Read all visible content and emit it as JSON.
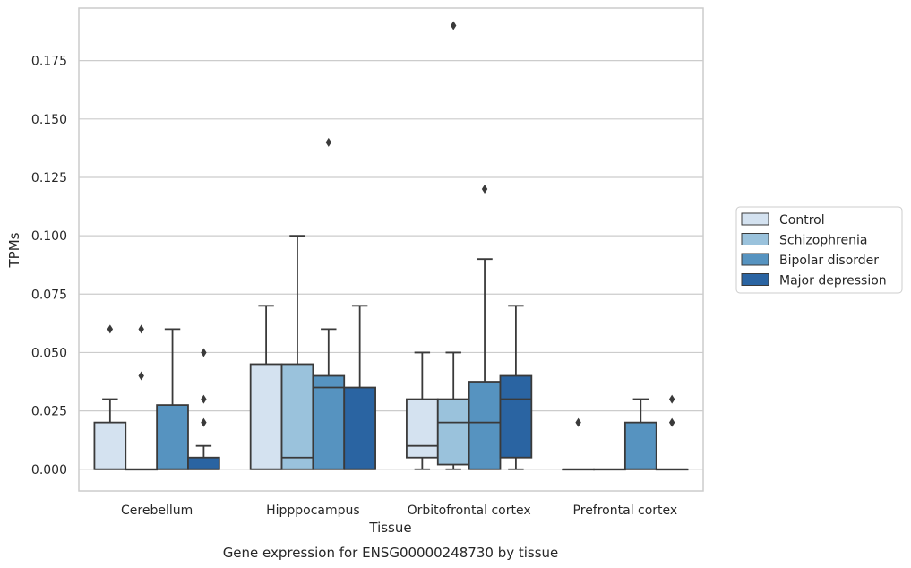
{
  "chart_data": {
    "type": "box",
    "title": "",
    "caption": "Gene expression for ENSG00000248730 by tissue",
    "xlabel": "Tissue",
    "ylabel": "TPMs",
    "ylim": [
      -0.0093,
      0.1975
    ],
    "yticks": [
      "0.000",
      "0.025",
      "0.050",
      "0.075",
      "0.100",
      "0.125",
      "0.150",
      "0.175"
    ],
    "grid": "horizontal",
    "legend_position": "right",
    "categories": [
      "Cerebellum",
      "Hipppocampus",
      "Orbitofrontal cortex",
      "Prefrontal cortex"
    ],
    "series": [
      {
        "name": "Control",
        "color": "#d4e2f0",
        "boxes": [
          {
            "low": 0,
            "q1": 0,
            "median": 0,
            "q3": 0.02,
            "high": 0.03,
            "outliers": [
              0.06
            ]
          },
          {
            "low": 0,
            "q1": 0,
            "median": 0,
            "q3": 0.045,
            "high": 0.07,
            "outliers": []
          },
          {
            "low": 0,
            "q1": 0.005,
            "median": 0.01,
            "q3": 0.03,
            "high": 0.05,
            "outliers": []
          },
          {
            "low": 0,
            "q1": 0,
            "median": 0,
            "q3": 0,
            "high": 0,
            "outliers": [
              0.02
            ]
          }
        ]
      },
      {
        "name": "Schizophrenia",
        "color": "#9ac2dc",
        "boxes": [
          {
            "low": 0,
            "q1": 0,
            "median": 0,
            "q3": 0,
            "high": 0,
            "outliers": [
              0.04,
              0.06
            ]
          },
          {
            "low": 0,
            "q1": 0,
            "median": 0.005,
            "q3": 0.045,
            "high": 0.1,
            "outliers": []
          },
          {
            "low": 0,
            "q1": 0.002,
            "median": 0.02,
            "q3": 0.03,
            "high": 0.05,
            "outliers": [
              0.19
            ]
          },
          {
            "low": 0,
            "q1": 0,
            "median": 0,
            "q3": 0,
            "high": 0,
            "outliers": []
          }
        ]
      },
      {
        "name": "Bipolar disorder",
        "color": "#5693c0",
        "boxes": [
          {
            "low": 0,
            "q1": 0,
            "median": 0,
            "q3": 0.0275,
            "high": 0.06,
            "outliers": []
          },
          {
            "low": 0,
            "q1": 0,
            "median": 0.035,
            "q3": 0.04,
            "high": 0.06,
            "outliers": [
              0.14
            ]
          },
          {
            "low": 0,
            "q1": 0,
            "median": 0.02,
            "q3": 0.0375,
            "high": 0.09,
            "outliers": [
              0.12
            ]
          },
          {
            "low": 0,
            "q1": 0,
            "median": 0,
            "q3": 0.02,
            "high": 0.03,
            "outliers": []
          }
        ]
      },
      {
        "name": "Major depression",
        "color": "#2a64a2",
        "boxes": [
          {
            "low": 0,
            "q1": 0,
            "median": 0,
            "q3": 0.005,
            "high": 0.01,
            "outliers": [
              0.02,
              0.03,
              0.05
            ]
          },
          {
            "low": 0,
            "q1": 0,
            "median": 0,
            "q3": 0.035,
            "high": 0.07,
            "outliers": []
          },
          {
            "low": 0,
            "q1": 0.005,
            "median": 0.03,
            "q3": 0.04,
            "high": 0.07,
            "outliers": []
          },
          {
            "low": 0,
            "q1": 0,
            "median": 0,
            "q3": 0,
            "high": 0,
            "outliers": [
              0.02,
              0.03
            ]
          }
        ]
      }
    ]
  }
}
